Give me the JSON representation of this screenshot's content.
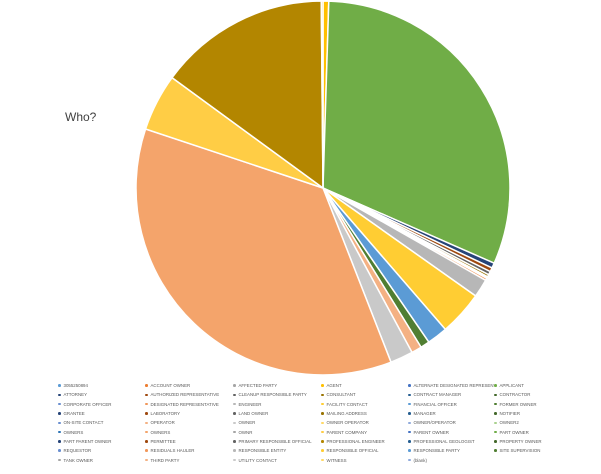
{
  "chart_data": {
    "type": "pie",
    "title": "Who?",
    "legend_position": "bottom",
    "series": [
      {
        "name": "",
        "slices": [
          {
            "label": "3055250894",
            "value": 0.0,
            "color": "#5b9bd5"
          },
          {
            "label": "ACCOUNT OWNER",
            "value": 0.0,
            "color": "#ed7d31"
          },
          {
            "label": "AFFECTED PARTY",
            "value": 0.0,
            "color": "#a5a5a5"
          },
          {
            "label": "AGENT",
            "value": 0.5,
            "color": "#ffc000"
          },
          {
            "label": "ALTERNATE DESIGNATED REPRESENTATIVE",
            "value": 0.0,
            "color": "#4472c4"
          },
          {
            "label": "APPLICANT",
            "value": 31.5,
            "color": "#70ad47"
          },
          {
            "label": "ATTORNEY",
            "value": 0.45,
            "color": "#264478"
          },
          {
            "label": "AUTHORIZED REPRESENTATIVE",
            "value": 0.35,
            "color": "#9e480e"
          },
          {
            "label": "CLEANUP RESPONSIBLE PARTY",
            "value": 0.3,
            "color": "#636363"
          },
          {
            "label": "CONSULTANT",
            "value": 0.2,
            "color": "#997300"
          },
          {
            "label": "CONTRACT MANAGER",
            "value": 0.05,
            "color": "#255e91"
          },
          {
            "label": "CONTRACTOR",
            "value": 0.05,
            "color": "#43682b"
          },
          {
            "label": "CORPORATE OFFICER",
            "value": 0.05,
            "color": "#698ed0"
          },
          {
            "label": "DESIGNATED REPRESENTATIVE",
            "value": 0.2,
            "color": "#f1975a"
          },
          {
            "label": "ENGINEER",
            "value": 1.6,
            "color": "#b7b7b7"
          },
          {
            "label": "FACILITY CONTACT",
            "value": 3.9,
            "color": "#ffcd33"
          },
          {
            "label": "FINANCIAL OFFICER",
            "value": 1.8,
            "color": "#5b9bd5"
          },
          {
            "label": "FORMER OWNER",
            "value": 0.8,
            "color": "#507e32"
          },
          {
            "label": "GRANTEE",
            "value": 0.0,
            "color": "#264478"
          },
          {
            "label": "LABORATORY",
            "value": 0.0,
            "color": "#9e480e"
          },
          {
            "label": "LAND OWNER",
            "value": 0.0,
            "color": "#636363"
          },
          {
            "label": "MAILING ADDRESS",
            "value": 0.0,
            "color": "#997300"
          },
          {
            "label": "MANAGER",
            "value": 0.0,
            "color": "#255e91"
          },
          {
            "label": "NOTIFIER",
            "value": 0.0,
            "color": "#43682b"
          },
          {
            "label": "ON-SITE CONTACT",
            "value": 0.0,
            "color": "#698ed0"
          },
          {
            "label": "OPERATOR",
            "value": 0.9,
            "color": "#f4b183"
          },
          {
            "label": "OWNER",
            "value": 2.0,
            "color": "#c9c9c9"
          },
          {
            "label": "OWNER OPERATOR",
            "value": 0.0,
            "color": "#ffd966"
          },
          {
            "label": "OWNER/OPERATOR",
            "value": 0.0,
            "color": "#8faadc"
          },
          {
            "label": "OWNER2",
            "value": 0.0,
            "color": "#a9d18e"
          },
          {
            "label": "OWNERS",
            "value": 0.0,
            "color": "#2e75b6"
          },
          {
            "label": "OWNERS",
            "value": 36.5,
            "color": "#f4a46b"
          },
          {
            "label": "OWNR",
            "value": 0.0,
            "color": "#a5a5a5"
          },
          {
            "label": "PARENT COMPANY",
            "value": 5.0,
            "color": "#ffcd45"
          },
          {
            "label": "PARENT OWNER",
            "value": 0.0,
            "color": "#4472c4"
          },
          {
            "label": "PART OWNER",
            "value": 0.0,
            "color": "#70ad47"
          },
          {
            "label": "PART PARENT OWNER",
            "value": 0.0,
            "color": "#264478"
          },
          {
            "label": "PERMITTEE",
            "value": 0.0,
            "color": "#9e480e"
          },
          {
            "label": "PRIMARY RESPONSIBLE OFFICIAL",
            "value": 0.0,
            "color": "#636363"
          },
          {
            "label": "PROFESSIONAL ENGINEER",
            "value": 15.0,
            "color": "#b38600"
          },
          {
            "label": "PROFESSIONAL GEOLOGIST",
            "value": 0.0,
            "color": "#255e91"
          },
          {
            "label": "PROPERTY OWNER",
            "value": 0.0,
            "color": "#43682b"
          },
          {
            "label": "REQUESTOR",
            "value": 0.0,
            "color": "#698ed0"
          },
          {
            "label": "RESIDUALS HAULER",
            "value": 0.0,
            "color": "#f1975a"
          },
          {
            "label": "RESPONSIBLE ENTITY",
            "value": 0.0,
            "color": "#b7b7b7"
          },
          {
            "label": "RESPONSIBLE OFFICIAL",
            "value": 0.15,
            "color": "#ffcd33"
          },
          {
            "label": "RESPONSIBLE PARTY",
            "value": 0.0,
            "color": "#5b9bd5"
          },
          {
            "label": "SITE SUPERVISION",
            "value": 0.0,
            "color": "#507e32"
          },
          {
            "label": "TANK OWNER",
            "value": 0.0,
            "color": "#a5a5a5"
          },
          {
            "label": "THIRD PARTY",
            "value": 0.0,
            "color": "#f4b183"
          },
          {
            "label": "UTILITY CONTACT",
            "value": 0.0,
            "color": "#c9c9c9"
          },
          {
            "label": "WITNESS",
            "value": 0.0,
            "color": "#ffd966"
          },
          {
            "label": "(blank)",
            "value": 0.0,
            "color": "#8faadc"
          }
        ]
      }
    ]
  }
}
